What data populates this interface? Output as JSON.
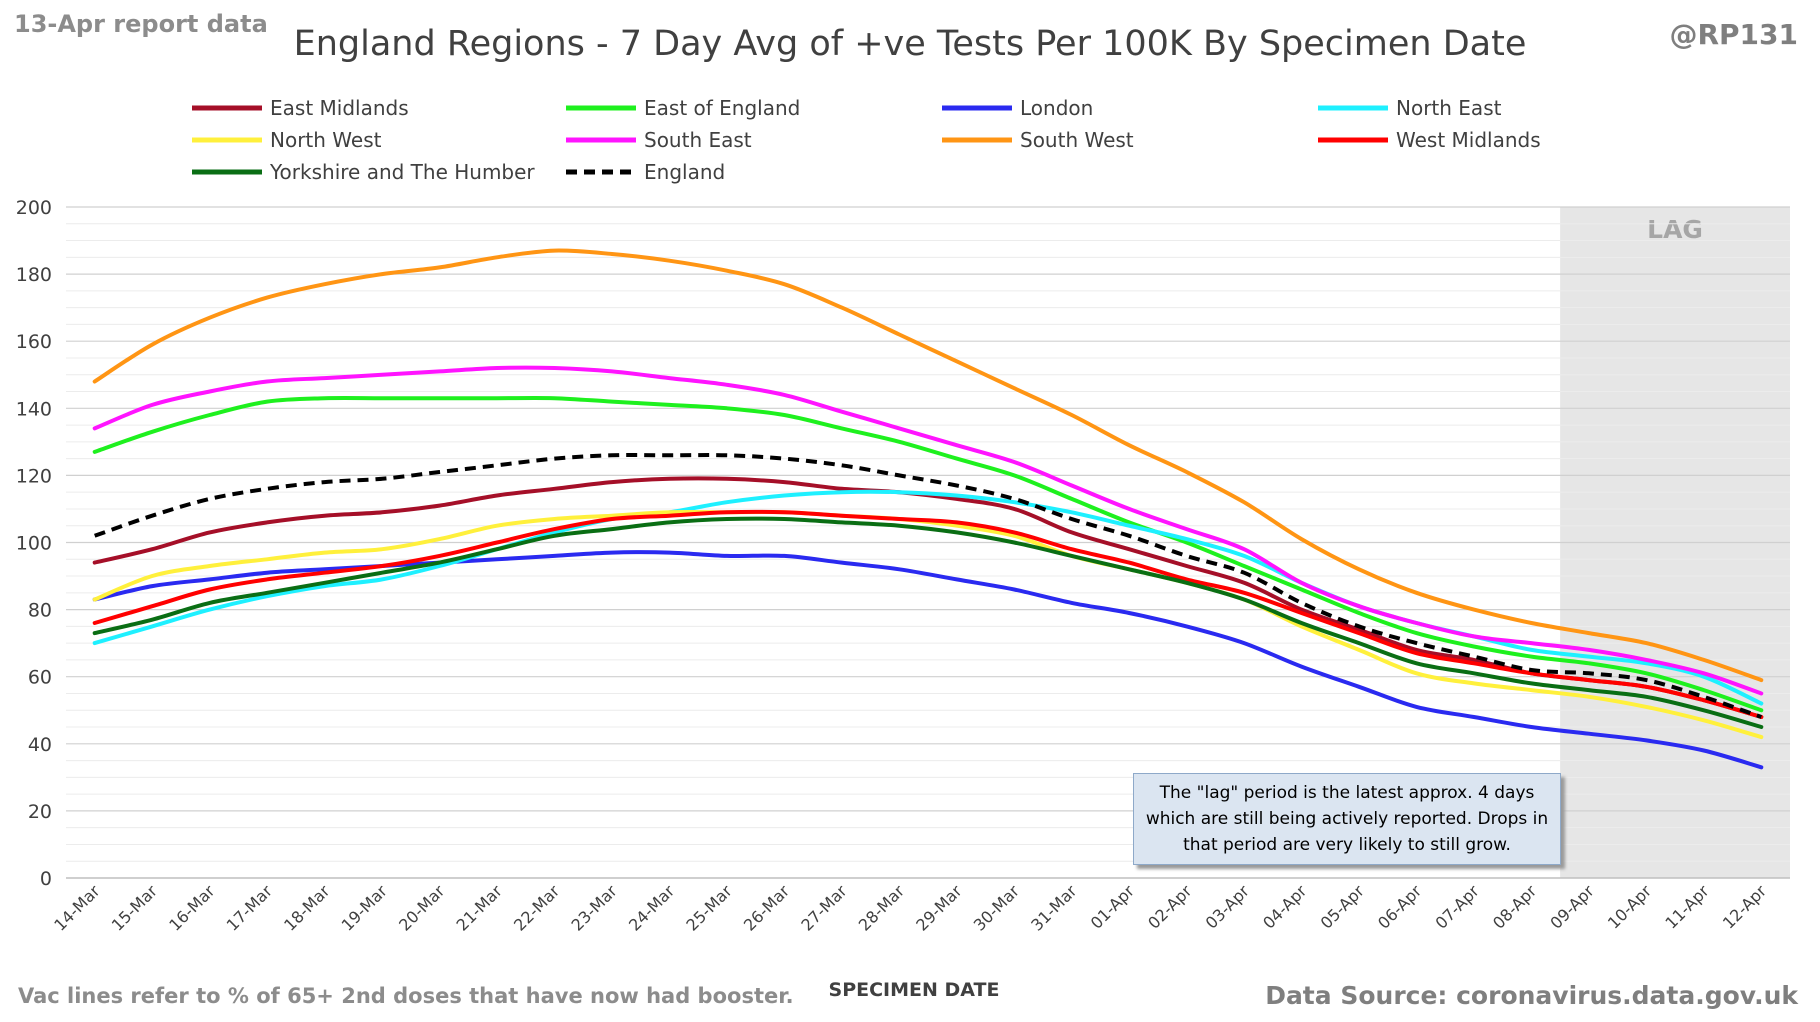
{
  "header": {
    "report_date": "13-Apr report data",
    "title": "England Regions - 7 Day Avg of +ve Tests Per 100K By Specimen Date",
    "handle": "@RP131"
  },
  "footer": {
    "vac_note": "Vac lines refer to % of 65+ 2nd doses that have now had booster.",
    "source": "Data Source: coronavirus.data.gov.uk"
  },
  "lag_note": "The \"lag\" period is the latest approx. 4 days which are still being actively reported. Drops in that period are very likely to still grow.",
  "chart_data": {
    "type": "line",
    "title": "England Regions - 7 Day Avg of +ve Tests Per 100K By Specimen Date",
    "xlabel": "SPECIMEN DATE",
    "ylabel": "",
    "ylim": [
      0,
      200
    ],
    "yticks": [
      0,
      20,
      40,
      60,
      80,
      100,
      120,
      140,
      160,
      180,
      200
    ],
    "grid": true,
    "legend_position": "top",
    "lag_label": "LAG",
    "lag_start": "09-Apr",
    "lag_end": "12-Apr",
    "categories": [
      "14-Mar",
      "15-Mar",
      "16-Mar",
      "17-Mar",
      "18-Mar",
      "19-Mar",
      "20-Mar",
      "21-Mar",
      "22-Mar",
      "23-Mar",
      "24-Mar",
      "25-Mar",
      "26-Mar",
      "27-Mar",
      "28-Mar",
      "29-Mar",
      "30-Mar",
      "31-Mar",
      "01-Apr",
      "02-Apr",
      "03-Apr",
      "04-Apr",
      "05-Apr",
      "06-Apr",
      "07-Apr",
      "08-Apr",
      "09-Apr",
      "10-Apr",
      "11-Apr",
      "12-Apr"
    ],
    "series": [
      {
        "name": "East Midlands",
        "color": "#a50f28",
        "dashed": false,
        "values": [
          94,
          98,
          103,
          106,
          108,
          109,
          111,
          114,
          116,
          118,
          119,
          119,
          118,
          116,
          115,
          113,
          110,
          103,
          98,
          93,
          88,
          80,
          74,
          68,
          65,
          61,
          59,
          57,
          53,
          48
        ]
      },
      {
        "name": "East of England",
        "color": "#1ef01e",
        "dashed": false,
        "values": [
          127,
          133,
          138,
          142,
          143,
          143,
          143,
          143,
          143,
          142,
          141,
          140,
          138,
          134,
          130,
          125,
          120,
          113,
          106,
          100,
          93,
          86,
          79,
          73,
          69,
          66,
          64,
          61,
          56,
          50
        ]
      },
      {
        "name": "London",
        "color": "#2a2af0",
        "dashed": false,
        "values": [
          83,
          87,
          89,
          91,
          92,
          93,
          94,
          95,
          96,
          97,
          97,
          96,
          96,
          94,
          92,
          89,
          86,
          82,
          79,
          75,
          70,
          63,
          57,
          51,
          48,
          45,
          43,
          41,
          38,
          33
        ]
      },
      {
        "name": "North East",
        "color": "#1ef0ff",
        "dashed": false,
        "values": [
          70,
          75,
          80,
          84,
          87,
          89,
          93,
          98,
          103,
          107,
          109,
          112,
          114,
          115,
          115,
          114,
          112,
          109,
          105,
          101,
          96,
          88,
          81,
          76,
          72,
          68,
          66,
          64,
          60,
          52
        ]
      },
      {
        "name": "North West",
        "color": "#fff03c",
        "dashed": false,
        "values": [
          83,
          90,
          93,
          95,
          97,
          98,
          101,
          105,
          107,
          108,
          109,
          109,
          109,
          108,
          107,
          105,
          102,
          96,
          92,
          88,
          83,
          75,
          68,
          61,
          58,
          56,
          54,
          51,
          47,
          42
        ]
      },
      {
        "name": "South East",
        "color": "#ff14ff",
        "dashed": false,
        "values": [
          134,
          141,
          145,
          148,
          149,
          150,
          151,
          152,
          152,
          151,
          149,
          147,
          144,
          139,
          134,
          129,
          124,
          117,
          110,
          104,
          98,
          88,
          81,
          76,
          72,
          70,
          68,
          65,
          61,
          55
        ]
      },
      {
        "name": "South West",
        "color": "#ff9514",
        "dashed": false,
        "values": [
          148,
          159,
          167,
          173,
          177,
          180,
          182,
          185,
          187,
          186,
          184,
          181,
          177,
          170,
          162,
          154,
          146,
          138,
          129,
          121,
          112,
          101,
          92,
          85,
          80,
          76,
          73,
          70,
          65,
          59
        ]
      },
      {
        "name": "West Midlands",
        "color": "#ff0000",
        "dashed": false,
        "values": [
          76,
          81,
          86,
          89,
          91,
          93,
          96,
          100,
          104,
          107,
          108,
          109,
          109,
          108,
          107,
          106,
          103,
          98,
          94,
          89,
          85,
          79,
          73,
          67,
          64,
          61,
          59,
          57,
          53,
          48
        ]
      },
      {
        "name": "Yorkshire and The Humber",
        "color": "#0a6e14",
        "dashed": false,
        "values": [
          73,
          77,
          82,
          85,
          88,
          91,
          94,
          98,
          102,
          104,
          106,
          107,
          107,
          106,
          105,
          103,
          100,
          96,
          92,
          88,
          83,
          76,
          70,
          64,
          61,
          58,
          56,
          54,
          50,
          45
        ]
      },
      {
        "name": "England",
        "color": "#000000",
        "dashed": true,
        "values": [
          102,
          108,
          113,
          116,
          118,
          119,
          121,
          123,
          125,
          126,
          126,
          126,
          125,
          123,
          120,
          117,
          113,
          107,
          102,
          96,
          91,
          82,
          75,
          70,
          66,
          62,
          61,
          59,
          54,
          48
        ]
      }
    ]
  }
}
